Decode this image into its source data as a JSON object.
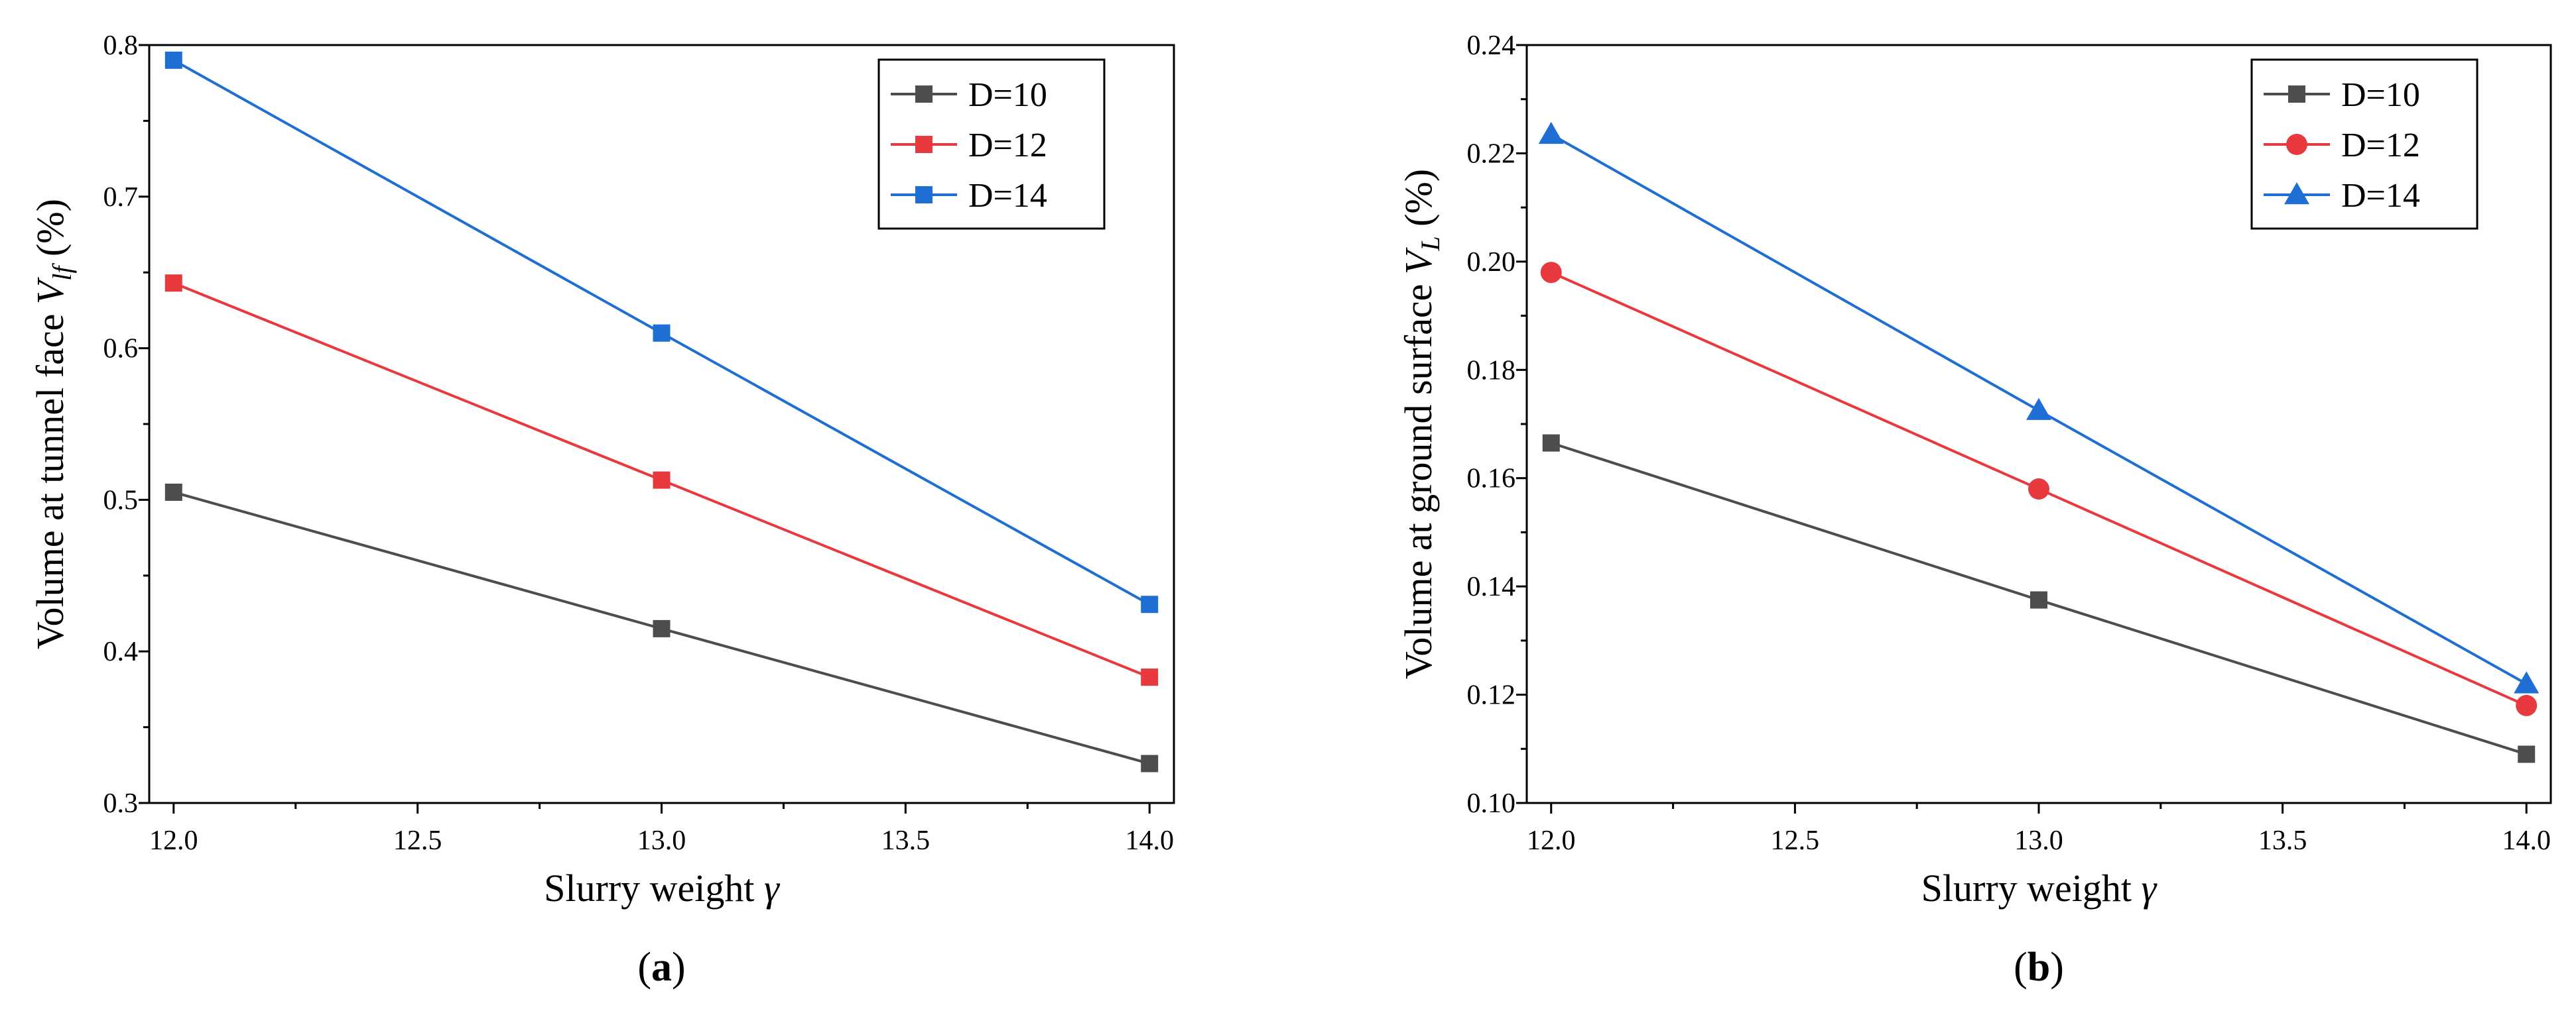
{
  "chart_data": [
    {
      "type": "line",
      "panel_label": {
        "open": "(",
        "letter": "a",
        "close": ")"
      },
      "xlabel": {
        "text": "Slurry weight ",
        "sym": "γ"
      },
      "ylabel": {
        "text": "Volume at tunnel face ",
        "sym": "V",
        "sub": "lf",
        "unit": " (%)"
      },
      "x": [
        12.0,
        13.0,
        14.0
      ],
      "xlim": [
        11.95,
        14.05
      ],
      "xticks": [
        12.0,
        12.5,
        13.0,
        13.5,
        14.0
      ],
      "xtick_labels": [
        "12.0",
        "12.5",
        "13.0",
        "13.5",
        "14.0"
      ],
      "ylim": [
        0.3,
        0.8
      ],
      "yticks": [
        0.3,
        0.4,
        0.5,
        0.6,
        0.7,
        0.8
      ],
      "ytick_labels": [
        "0.3",
        "0.4",
        "0.5",
        "0.6",
        "0.7",
        "0.8"
      ],
      "grid": false,
      "legend_position": "top-right",
      "series": [
        {
          "name": "D=10",
          "color": "#4d4d4d",
          "marker": "square",
          "values": [
            0.505,
            0.415,
            0.326
          ]
        },
        {
          "name": "D=12",
          "color": "#e8393e",
          "marker": "square",
          "values": [
            0.643,
            0.513,
            0.383
          ]
        },
        {
          "name": "D=14",
          "color": "#1f6ed4",
          "marker": "square",
          "values": [
            0.79,
            0.61,
            0.431
          ]
        }
      ]
    },
    {
      "type": "line",
      "panel_label": {
        "open": "(",
        "letter": "b",
        "close": ")"
      },
      "xlabel": {
        "text": "Slurry weight ",
        "sym": "γ"
      },
      "ylabel": {
        "text": "Volume at ground surface ",
        "sym": "V",
        "sub": "L",
        "unit": " (%)"
      },
      "x": [
        12.0,
        13.0,
        14.0
      ],
      "xlim": [
        11.95,
        14.05
      ],
      "xticks": [
        12.0,
        12.5,
        13.0,
        13.5,
        14.0
      ],
      "xtick_labels": [
        "12.0",
        "12.5",
        "13.0",
        "13.5",
        "14.0"
      ],
      "ylim": [
        0.1,
        0.24
      ],
      "yticks": [
        0.1,
        0.12,
        0.14,
        0.16,
        0.18,
        0.2,
        0.22,
        0.24
      ],
      "ytick_labels": [
        "0.10",
        "0.12",
        "0.14",
        "0.16",
        "0.18",
        "0.20",
        "0.22",
        "0.24"
      ],
      "grid": false,
      "legend_position": "top-right",
      "series": [
        {
          "name": "D=10",
          "color": "#4d4d4d",
          "marker": "square",
          "values": [
            0.1665,
            0.1375,
            0.109
          ]
        },
        {
          "name": "D=12",
          "color": "#e8393e",
          "marker": "circle",
          "values": [
            0.198,
            0.158,
            0.118
          ]
        },
        {
          "name": "D=14",
          "color": "#1f6ed4",
          "marker": "triangle",
          "values": [
            0.2235,
            0.1725,
            0.122
          ]
        }
      ]
    }
  ]
}
